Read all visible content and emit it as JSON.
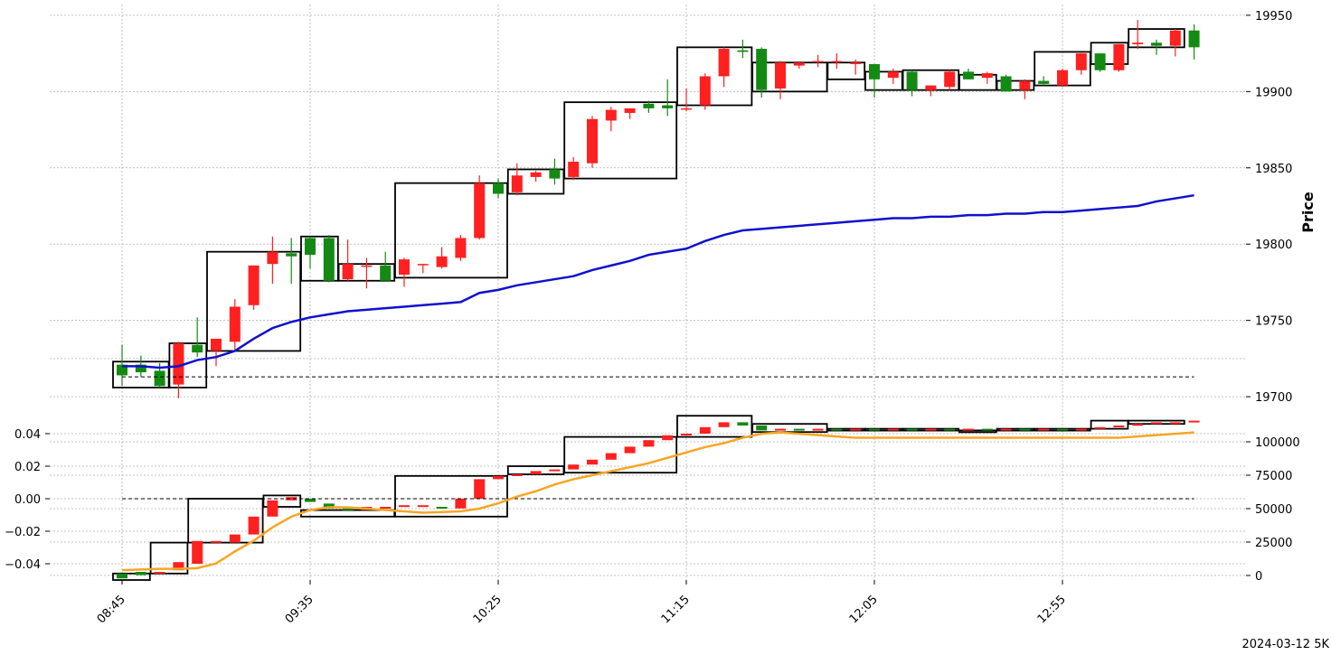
{
  "chart_data": {
    "type": "candlestick",
    "footer": "2024-03-12 5K",
    "x_ticks": [
      "08:45",
      "09:35",
      "10:25",
      "11:15",
      "12:05",
      "12:55"
    ],
    "colors": {
      "up": "#ff2020",
      "down": "#138a13",
      "ma": "#1010cc",
      "cum": "#f5a623",
      "box": "#000000"
    },
    "price_panel": {
      "ylabel": "Price",
      "yticks": [
        19700,
        19750,
        19800,
        19850,
        19900,
        19950
      ],
      "ylim": [
        19690,
        19960
      ],
      "reference_line": 19713,
      "ohlc": [
        [
          19721,
          19734,
          19707,
          19714
        ],
        [
          19721,
          19727,
          19713,
          19716
        ],
        [
          19717,
          19722,
          19706,
          19707
        ],
        [
          19708,
          19736,
          19699,
          19735
        ],
        [
          19734,
          19752,
          19726,
          19729
        ],
        [
          19730,
          19738,
          19720,
          19738
        ],
        [
          19736,
          19764,
          19731,
          19759
        ],
        [
          19760,
          19786,
          19757,
          19786
        ],
        [
          19787,
          19805,
          19774,
          19795
        ],
        [
          19794,
          19804,
          19774,
          19792
        ],
        [
          19804,
          19805,
          19784,
          19793
        ],
        [
          19804,
          19806,
          19775,
          19776
        ],
        [
          19777,
          19803,
          19776,
          19787
        ],
        [
          19786,
          19791,
          19771,
          19786
        ],
        [
          19786,
          19795,
          19777,
          19776
        ],
        [
          19780,
          19791,
          19772,
          19790
        ],
        [
          19787,
          19787,
          19781,
          19787
        ],
        [
          19785,
          19798,
          19784,
          19792
        ],
        [
          19791,
          19806,
          19789,
          19804
        ],
        [
          19804,
          19845,
          19803,
          19840
        ],
        [
          19840,
          19843,
          19830,
          19833
        ],
        [
          19834,
          19853,
          19832,
          19845
        ],
        [
          19844,
          19848,
          19841,
          19847
        ],
        [
          19849,
          19856,
          19839,
          19843
        ],
        [
          19844,
          19857,
          19842,
          19854
        ],
        [
          19853,
          19884,
          19850,
          19882
        ],
        [
          19881,
          19890,
          19874,
          19888
        ],
        [
          19886,
          19888,
          19882,
          19889
        ],
        [
          19892,
          19894,
          19886,
          19889
        ],
        [
          19891,
          19908,
          19884,
          19889
        ],
        [
          19889,
          19902,
          19887,
          19889
        ],
        [
          19891,
          19912,
          19888,
          19910
        ],
        [
          19910,
          19929,
          19903,
          19928
        ],
        [
          19927,
          19934,
          19922,
          19926
        ],
        [
          19928,
          19929,
          19896,
          19901
        ],
        [
          19902,
          19920,
          19895,
          19919
        ],
        [
          19917,
          19919,
          19915,
          19919
        ],
        [
          19920,
          19924,
          19916,
          19920
        ],
        [
          19920,
          19925,
          19915,
          19920
        ],
        [
          19918,
          19921,
          19911,
          19919
        ],
        [
          19918,
          19918,
          19896,
          19908
        ],
        [
          19909,
          19915,
          19905,
          19913
        ],
        [
          19913,
          19914,
          19897,
          19901
        ],
        [
          19901,
          19904,
          19897,
          19904
        ],
        [
          19903,
          19914,
          19901,
          19913
        ],
        [
          19913,
          19915,
          19908,
          19908
        ],
        [
          19909,
          19913,
          19905,
          19912
        ],
        [
          19910,
          19911,
          19900,
          19900
        ],
        [
          19901,
          19908,
          19895,
          19907
        ],
        [
          19907,
          19910,
          19904,
          19905
        ],
        [
          19904,
          19915,
          19903,
          19914
        ],
        [
          19914,
          19925,
          19911,
          19925
        ],
        [
          19925,
          19925,
          19913,
          19914
        ],
        [
          19914,
          19931,
          19913,
          19931
        ],
        [
          19931,
          19947,
          19928,
          19932
        ],
        [
          19932,
          19934,
          19924,
          19930
        ],
        [
          19930,
          19941,
          19923,
          19940
        ],
        [
          19940,
          19944,
          19921,
          19929
        ]
      ],
      "ma": [
        19720,
        19720,
        19719,
        19720,
        19724,
        19726,
        19730,
        19738,
        19745,
        19749,
        19752,
        19754,
        19756,
        19757,
        19758,
        19759,
        19760,
        19761,
        19762,
        19768,
        19770,
        19773,
        19775,
        19777,
        19779,
        19783,
        19786,
        19789,
        19793,
        19795,
        19797,
        19802,
        19806,
        19809,
        19810,
        19811,
        19812,
        19813,
        19814,
        19815,
        19816,
        19817,
        19817,
        19818,
        19818,
        19819,
        19819,
        19820,
        19820,
        19821,
        19821,
        19822,
        19823,
        19824,
        19825,
        19828,
        19830,
        19832
      ],
      "boxes": [
        [
          0,
          2,
          19706,
          19723
        ],
        [
          3,
          4,
          19706,
          19735
        ],
        [
          5,
          9,
          19730,
          19795
        ],
        [
          10,
          11,
          19776,
          19805
        ],
        [
          12,
          14,
          19776,
          19787
        ],
        [
          15,
          20,
          19778,
          19840
        ],
        [
          21,
          23,
          19833,
          19849
        ],
        [
          24,
          29,
          19843,
          19893
        ],
        [
          30,
          33,
          19891,
          19929
        ],
        [
          34,
          37,
          19900,
          19919
        ],
        [
          38,
          39,
          19908,
          19919
        ],
        [
          40,
          41,
          19901,
          19913
        ],
        [
          42,
          44,
          19901,
          19914
        ],
        [
          45,
          46,
          19901,
          19911
        ],
        [
          47,
          48,
          19901,
          19907
        ],
        [
          49,
          51,
          19904,
          19926
        ],
        [
          52,
          53,
          19918,
          19932
        ],
        [
          54,
          56,
          19929,
          19941
        ]
      ]
    },
    "indicator_panel": {
      "left_yticks": [
        "0.04",
        "0.02",
        "0.00",
        "−0.02",
        "−0.04"
      ],
      "left_ytick_values": [
        0.04,
        0.02,
        0.0,
        -0.02,
        -0.04
      ],
      "right_yticks": [
        "100000",
        "75000",
        "50000",
        "25000",
        "0"
      ],
      "right_ytick_values": [
        100000,
        75000,
        50000,
        25000,
        0
      ],
      "ylim": [
        -0.05,
        0.05
      ],
      "reference_line": 0.0,
      "candles": [
        [
          -0.046,
          -0.049
        ],
        [
          -0.045,
          -0.047
        ],
        [
          -0.046,
          -0.045
        ],
        [
          -0.044,
          -0.039
        ],
        [
          -0.04,
          -0.026
        ],
        [
          -0.027,
          -0.026
        ],
        [
          -0.027,
          -0.022
        ],
        [
          -0.022,
          -0.011
        ],
        [
          -0.011,
          -0.001
        ],
        [
          -0.001,
          0.001
        ],
        [
          0.0,
          -0.002
        ],
        [
          -0.003,
          -0.006
        ],
        [
          -0.006,
          -0.007
        ],
        [
          -0.007,
          -0.005
        ],
        [
          -0.006,
          -0.005
        ],
        [
          -0.005,
          -0.004
        ],
        [
          -0.005,
          -0.004
        ],
        [
          -0.005,
          -0.006
        ],
        [
          -0.006,
          0.0
        ],
        [
          0.0,
          0.012
        ],
        [
          0.012,
          0.014
        ],
        [
          0.014,
          0.015
        ],
        [
          0.015,
          0.017
        ],
        [
          0.017,
          0.018
        ],
        [
          0.018,
          0.021
        ],
        [
          0.021,
          0.024
        ],
        [
          0.024,
          0.028
        ],
        [
          0.028,
          0.032
        ],
        [
          0.032,
          0.036
        ],
        [
          0.036,
          0.039
        ],
        [
          0.039,
          0.04
        ],
        [
          0.04,
          0.044
        ],
        [
          0.044,
          0.047
        ],
        [
          0.047,
          0.045
        ],
        [
          0.045,
          0.042
        ],
        [
          0.042,
          0.043
        ],
        [
          0.043,
          0.042
        ],
        [
          0.042,
          0.043
        ],
        [
          0.043,
          0.042
        ],
        [
          0.042,
          0.043
        ],
        [
          0.043,
          0.042
        ],
        [
          0.042,
          0.043
        ],
        [
          0.043,
          0.042
        ],
        [
          0.042,
          0.043
        ],
        [
          0.043,
          0.042
        ],
        [
          0.042,
          0.043
        ],
        [
          0.043,
          0.042
        ],
        [
          0.042,
          0.043
        ],
        [
          0.043,
          0.042
        ],
        [
          0.042,
          0.043
        ],
        [
          0.043,
          0.042
        ],
        [
          0.042,
          0.043
        ],
        [
          0.043,
          0.044
        ],
        [
          0.044,
          0.045
        ],
        [
          0.045,
          0.046
        ],
        [
          0.046,
          0.047
        ],
        [
          0.047,
          0.047
        ],
        [
          0.047,
          0.048
        ]
      ],
      "cumulative": [
        4000,
        4500,
        5000,
        5000,
        5500,
        9000,
        18000,
        26000,
        36000,
        44000,
        49000,
        51000,
        51000,
        50000,
        49000,
        48000,
        47000,
        47500,
        48000,
        50000,
        54000,
        59000,
        63000,
        68000,
        72000,
        75000,
        78000,
        81000,
        84000,
        88000,
        92000,
        96000,
        99000,
        103000,
        106000,
        107000,
        106000,
        105000,
        104000,
        103000,
        103000,
        103000,
        103000,
        103000,
        103000,
        103000,
        103000,
        103000,
        103000,
        103000,
        103000,
        103000,
        103000,
        103000,
        104000,
        105000,
        106000,
        107000
      ],
      "boxes": [
        [
          0,
          1,
          -0.05,
          -0.046
        ],
        [
          2,
          3,
          -0.046,
          -0.027
        ],
        [
          4,
          7,
          -0.027,
          0.0
        ],
        [
          8,
          9,
          -0.005,
          0.002
        ],
        [
          10,
          14,
          -0.011,
          -0.007
        ],
        [
          15,
          20,
          -0.011,
          0.014
        ],
        [
          21,
          23,
          0.015,
          0.02
        ],
        [
          24,
          29,
          0.016,
          0.038
        ],
        [
          30,
          33,
          0.038,
          0.051
        ],
        [
          34,
          37,
          0.041,
          0.046
        ],
        [
          38,
          39,
          0.042,
          0.043
        ],
        [
          40,
          41,
          0.042,
          0.043
        ],
        [
          42,
          44,
          0.042,
          0.043
        ],
        [
          45,
          46,
          0.041,
          0.042
        ],
        [
          47,
          48,
          0.042,
          0.043
        ],
        [
          49,
          51,
          0.042,
          0.043
        ],
        [
          52,
          53,
          0.043,
          0.048
        ],
        [
          54,
          56,
          0.046,
          0.048
        ]
      ]
    }
  }
}
